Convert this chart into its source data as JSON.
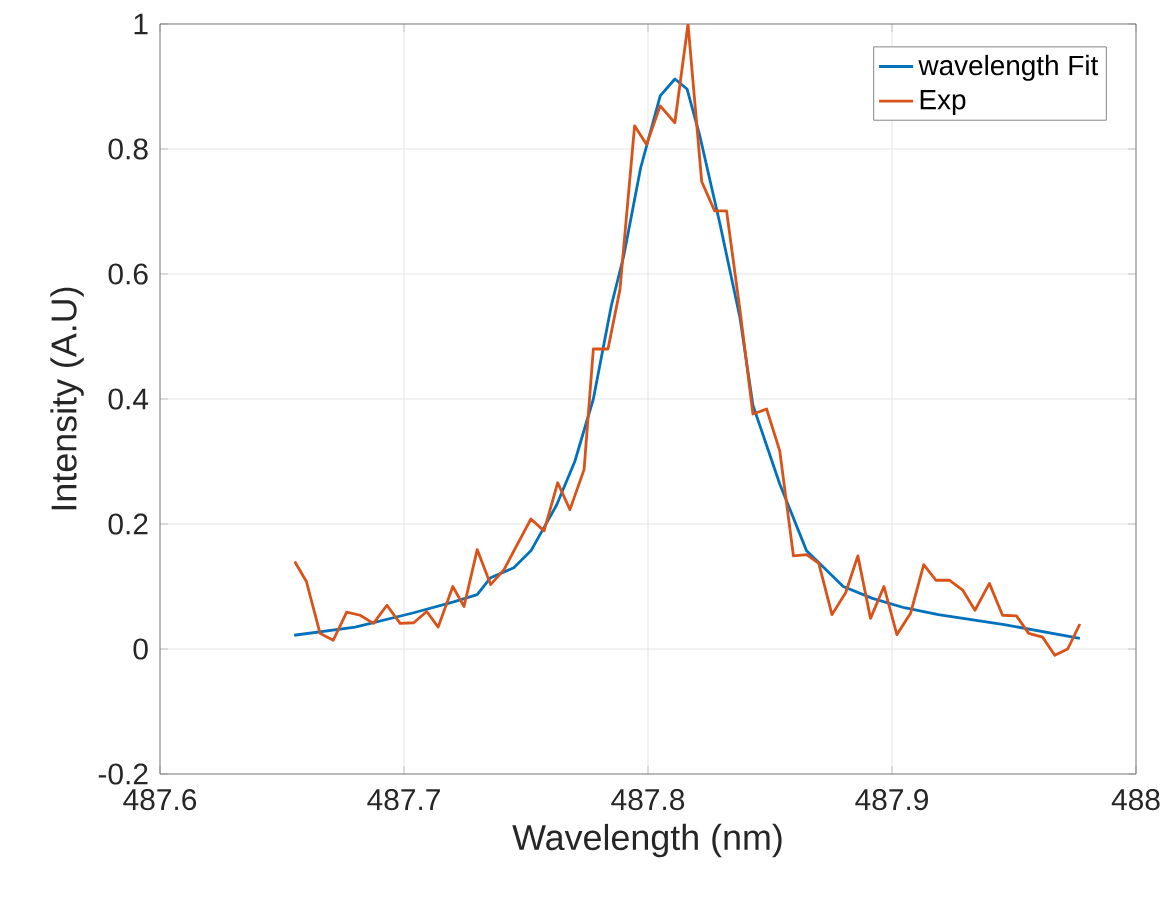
{
  "chart_data": {
    "type": "line",
    "xlabel": "Wavelength (nm)",
    "ylabel": "Intensity (A.U)",
    "xlim": [
      487.6,
      488
    ],
    "xticks": [
      487.6,
      487.7,
      487.8,
      487.9,
      488
    ],
    "ylim": [
      -0.2,
      1
    ],
    "yticks": [
      -0.2,
      0,
      0.2,
      0.4,
      0.6,
      0.8,
      1
    ],
    "grid": true,
    "legend": "top right",
    "marker": "none",
    "line_style": "solid",
    "series": [
      {
        "name": "wavelength Fit",
        "color": "#0072bd",
        "x": [
          487.655,
          487.68,
          487.704,
          487.72,
          487.73,
          487.7355,
          487.745,
          487.752,
          487.7625,
          487.77,
          487.7776,
          487.785,
          487.79,
          487.797,
          487.805,
          487.811,
          487.816,
          487.8213,
          487.8295,
          487.8377,
          487.843,
          487.854,
          487.865,
          487.88,
          487.892,
          487.905,
          487.919,
          487.946,
          487.977
        ],
        "values": [
          0.022,
          0.035,
          0.058,
          0.075,
          0.087,
          0.114,
          0.13,
          0.157,
          0.23,
          0.3,
          0.4,
          0.55,
          0.628,
          0.77,
          0.885,
          0.912,
          0.896,
          0.82,
          0.68,
          0.53,
          0.39,
          0.264,
          0.157,
          0.1,
          0.081,
          0.066,
          0.055,
          0.039,
          0.017
        ]
      },
      {
        "name": "Exp",
        "color": "#d95319",
        "x": [
          487.6552,
          487.66,
          487.6656,
          487.671,
          487.6765,
          487.682,
          487.6875,
          487.693,
          487.6984,
          487.704,
          487.7093,
          487.714,
          487.72,
          487.7246,
          487.73,
          487.7355,
          487.741,
          487.7464,
          487.752,
          487.7574,
          487.763,
          487.768,
          487.7738,
          487.7776,
          487.7836,
          487.7885,
          487.7945,
          487.7994,
          487.805,
          487.811,
          487.8164,
          487.822,
          487.8273,
          487.8322,
          487.8377,
          487.843,
          487.8486,
          487.854,
          487.8596,
          487.865,
          487.87,
          487.8754,
          487.881,
          487.886,
          487.8912,
          487.8967,
          487.902,
          487.9076,
          487.913,
          487.918,
          487.9235,
          487.929,
          487.934,
          487.9399,
          487.9453,
          487.951,
          487.956,
          487.9617,
          487.9667,
          487.972,
          487.977
        ],
        "values": [
          0.14,
          0.108,
          0.025,
          0.014,
          0.059,
          0.054,
          0.041,
          0.07,
          0.041,
          0.042,
          0.06,
          0.035,
          0.1,
          0.068,
          0.159,
          0.103,
          0.127,
          0.167,
          0.208,
          0.189,
          0.266,
          0.223,
          0.287,
          0.48,
          0.48,
          0.575,
          0.837,
          0.807,
          0.869,
          0.842,
          1.0,
          0.748,
          0.701,
          0.701,
          0.542,
          0.376,
          0.384,
          0.317,
          0.149,
          0.151,
          0.137,
          0.055,
          0.09,
          0.149,
          0.049,
          0.1,
          0.023,
          0.057,
          0.135,
          0.11,
          0.11,
          0.094,
          0.062,
          0.105,
          0.054,
          0.053,
          0.025,
          0.019,
          -0.01,
          0.0,
          0.04
        ]
      }
    ]
  }
}
